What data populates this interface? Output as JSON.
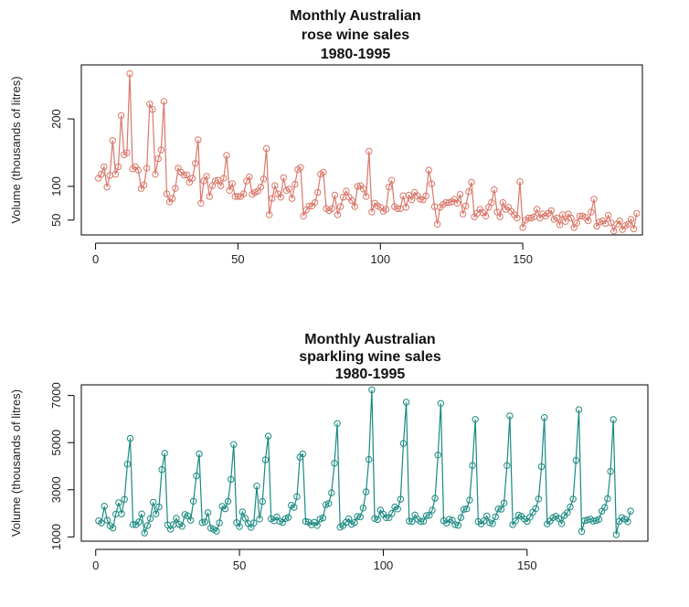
{
  "chart_data": [
    {
      "type": "line",
      "title": [
        "Monthly Australian",
        "rose wine sales",
        "1980-1995"
      ],
      "xlabel": "",
      "ylabel": "Volume (thousands of litres)",
      "xlim": [
        -5,
        192
      ],
      "ylim": [
        28,
        280
      ],
      "x_ticks": [
        0,
        50,
        100,
        150
      ],
      "y_ticks": [
        50,
        100,
        200
      ],
      "color": "#d9786a",
      "series": [
        {
          "values": [
            112,
            118,
            129,
            99,
            116,
            168,
            118,
            129,
            205,
            147,
            150,
            267,
            126,
            129,
            124,
            97,
            102,
            127,
            222,
            214,
            118,
            141,
            154,
            226,
            89,
            77,
            82,
            97,
            127,
            121,
            117,
            117,
            106,
            112,
            134,
            169,
            75,
            108,
            115,
            85,
            101,
            108,
            109,
            101,
            112,
            146,
            94,
            104,
            85,
            85,
            85,
            89,
            108,
            114,
            88,
            91,
            93,
            99,
            111,
            156,
            58,
            82,
            101,
            89,
            84,
            113,
            94,
            96,
            82,
            103,
            125,
            128,
            56,
            65,
            71,
            71,
            76,
            91,
            118,
            121,
            67,
            64,
            67,
            87,
            58,
            70,
            84,
            93,
            84,
            79,
            70,
            100,
            101,
            96,
            85,
            152,
            62,
            75,
            71,
            69,
            63,
            66,
            99,
            109,
            70,
            67,
            67,
            86,
            69,
            87,
            80,
            91,
            86,
            81,
            80,
            86,
            124,
            104,
            70,
            44,
            69,
            73,
            76,
            76,
            77,
            81,
            75,
            88,
            59,
            71,
            92,
            106,
            55,
            60,
            66,
            61,
            56,
            69,
            76,
            95,
            62,
            55,
            76,
            66,
            69,
            63,
            58,
            53,
            107,
            39,
            50,
            53,
            53,
            55,
            66,
            53,
            59,
            56,
            60,
            64,
            51,
            53,
            43,
            58,
            48,
            59,
            53,
            39,
            46,
            56,
            56,
            54,
            49,
            62,
            81,
            41,
            47,
            49,
            45,
            57,
            46,
            34,
            44,
            49,
            36,
            42,
            44,
            51,
            37,
            60
          ]
        }
      ]
    },
    {
      "type": "line",
      "title": [
        "Monthly Australian",
        "sparkling wine sales",
        "1980-1995"
      ],
      "xlabel": "",
      "ylabel": "Volume (thousands of litres)",
      "xlim": [
        -5,
        192
      ],
      "ylim": [
        820,
        7450
      ],
      "x_ticks": [
        0,
        50,
        100,
        150
      ],
      "y_ticks": [
        1000,
        3000,
        5000,
        7000
      ],
      "color": "#1a8a82",
      "series": [
        {
          "values": [
            1686,
            1591,
            2304,
            1712,
            1471,
            1377,
            1966,
            2453,
            1984,
            2596,
            4087,
            5179,
            1530,
            1523,
            1633,
            1976,
            1170,
            1480,
            1781,
            2472,
            1981,
            2273,
            3857,
            4551,
            1510,
            1329,
            1518,
            1790,
            1537,
            1449,
            1954,
            1897,
            1706,
            2514,
            3593,
            4524,
            1609,
            1638,
            2030,
            1375,
            1320,
            1245,
            1600,
            2298,
            2191,
            2511,
            3440,
            4923,
            1609,
            1435,
            2061,
            1789,
            1567,
            1404,
            1597,
            3159,
            1759,
            2504,
            4273,
            5274,
            1771,
            1682,
            1846,
            1667,
            1614,
            1779,
            1827,
            2342,
            2253,
            2712,
            4383,
            4520,
            1659,
            1625,
            1516,
            1617,
            1487,
            1754,
            1810,
            2364,
            2421,
            2872,
            4128,
            5811,
            1412,
            1484,
            1620,
            1771,
            1534,
            1610,
            1865,
            1851,
            2223,
            2915,
            4288,
            7242,
            1781,
            1735,
            2144,
            1964,
            1816,
            1820,
            1999,
            2269,
            2186,
            2598,
            4964,
            6712,
            1672,
            1658,
            1934,
            1748,
            1655,
            1669,
            1905,
            1919,
            2136,
            2643,
            4474,
            6664,
            1689,
            1591,
            1748,
            1707,
            1523,
            1490,
            1823,
            2171,
            2193,
            2559,
            4035,
            5986,
            1654,
            1553,
            1686,
            1888,
            1602,
            1564,
            1850,
            2184,
            2178,
            2437,
            4027,
            6135,
            1523,
            1679,
            1926,
            1873,
            1757,
            1659,
            1836,
            2044,
            2205,
            2613,
            3982,
            6067,
            1554,
            1673,
            1816,
            1878,
            1785,
            1563,
            1904,
            2029,
            2273,
            2609,
            4248,
            6401,
            1230,
            1688,
            1720,
            1755,
            1670,
            1698,
            1751,
            2090,
            2256,
            2623,
            3784,
            5975,
            1096,
            1659,
            1816,
            1751,
            1641,
            2096
          ]
        }
      ]
    }
  ]
}
